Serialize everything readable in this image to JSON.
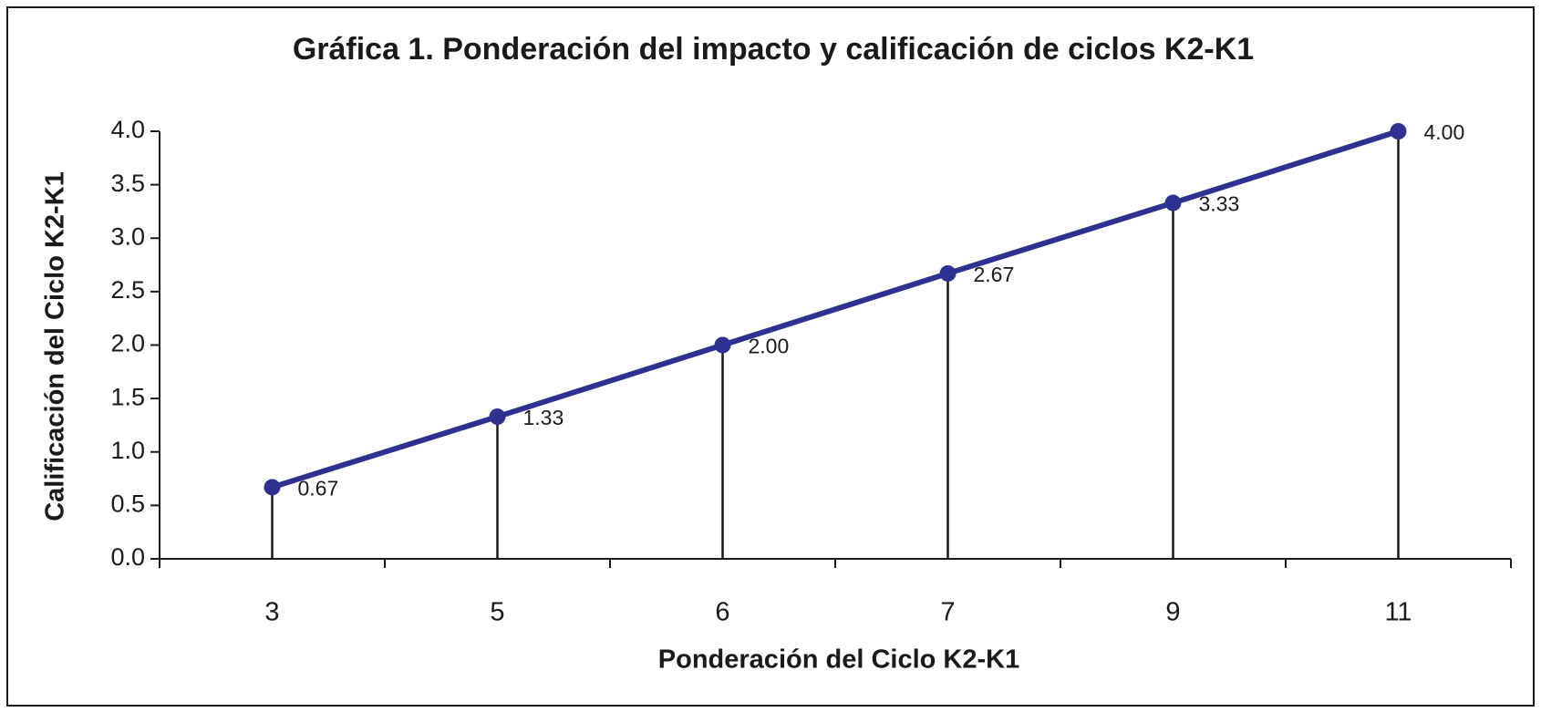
{
  "chart_data": {
    "type": "line",
    "title": "Gráfica 1. Ponderación del impacto y calificación de ciclos K2-K1",
    "x_label": "Ponderación del Ciclo K2-K1",
    "y_label": "Calificación del Ciclo K2-K1",
    "categories": [
      "3",
      "5",
      "6",
      "7",
      "9",
      "11"
    ],
    "values": [
      0.67,
      1.33,
      2.0,
      2.67,
      3.33,
      4.0
    ],
    "value_labels": [
      "0.67",
      "1.33",
      "2.00",
      "2.67",
      "3.33",
      "4.00"
    ],
    "color": "#2e3192",
    "ylim": [
      0,
      4
    ],
    "yticks": [
      {
        "value": 0,
        "label": "0.0"
      },
      {
        "value": 0.5,
        "label": "0.5"
      },
      {
        "value": 1,
        "label": "1.0"
      },
      {
        "value": 1.5,
        "label": "1.5"
      },
      {
        "value": 2,
        "label": "2.0"
      },
      {
        "value": 2.5,
        "label": "2.5"
      },
      {
        "value": 3,
        "label": "3.0"
      },
      {
        "value": 3.5,
        "label": "3.5"
      },
      {
        "value": 4,
        "label": "4.0"
      }
    ],
    "grid": false
  }
}
